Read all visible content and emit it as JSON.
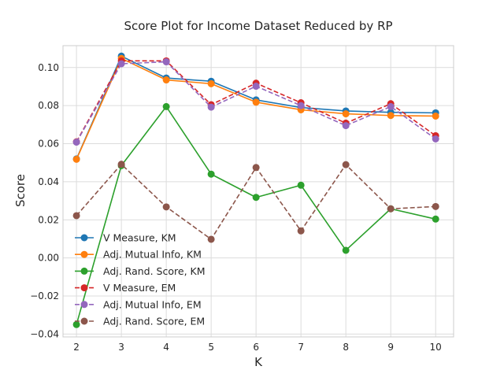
{
  "chart_data": {
    "type": "line",
    "title": "Score Plot for Income Dataset Reduced by RP",
    "xlabel": "K",
    "ylabel": "Score",
    "x": [
      2,
      3,
      4,
      5,
      6,
      7,
      8,
      9,
      10
    ],
    "xlim": [
      1.7,
      10.4
    ],
    "ylim": [
      -0.0415,
      0.1115
    ],
    "x_ticks": [
      2,
      3,
      4,
      5,
      6,
      7,
      8,
      9,
      10
    ],
    "x_tick_labels": [
      "2",
      "3",
      "4",
      "5",
      "6",
      "7",
      "8",
      "9",
      "10"
    ],
    "y_ticks": [
      -0.04,
      -0.02,
      0.0,
      0.02,
      0.04,
      0.06,
      0.08,
      0.1
    ],
    "y_tick_labels": [
      "−0.04",
      "−0.02",
      "0.00",
      "0.02",
      "0.04",
      "0.06",
      "0.08",
      "0.10"
    ],
    "grid": true,
    "legend_position": "lower-left",
    "series": [
      {
        "name": "V Measure, KM",
        "color": "#1f77b4",
        "dashed": false,
        "values": [
          0.052,
          0.106,
          0.0945,
          0.0928,
          0.083,
          0.079,
          0.0772,
          0.0765,
          0.0762
        ]
      },
      {
        "name": "Adj. Mutual Info, KM",
        "color": "#ff7f0e",
        "dashed": false,
        "values": [
          0.0518,
          0.1048,
          0.0935,
          0.0915,
          0.0818,
          0.0778,
          0.0757,
          0.0748,
          0.0745
        ]
      },
      {
        "name": "Adj. Rand. Score, KM",
        "color": "#2ca02c",
        "dashed": false,
        "values": [
          -0.035,
          0.0485,
          0.0795,
          0.044,
          0.0318,
          0.0382,
          0.004,
          0.0258,
          0.0204
        ]
      },
      {
        "name": "V Measure, EM",
        "color": "#d62728",
        "dashed": true,
        "values": [
          0.061,
          0.1035,
          0.1035,
          0.0805,
          0.0918,
          0.0815,
          0.0708,
          0.081,
          0.0642
        ]
      },
      {
        "name": "Adj. Mutual Info, EM",
        "color": "#9467bd",
        "dashed": true,
        "values": [
          0.0608,
          0.102,
          0.103,
          0.0792,
          0.0902,
          0.08,
          0.0695,
          0.0795,
          0.0625
        ]
      },
      {
        "name": "Adj. Rand. Score, EM",
        "color": "#8c564b",
        "dashed": true,
        "values": [
          0.0222,
          0.0492,
          0.0268,
          0.0098,
          0.0475,
          0.0142,
          0.049,
          0.0258,
          0.027
        ]
      }
    ]
  }
}
